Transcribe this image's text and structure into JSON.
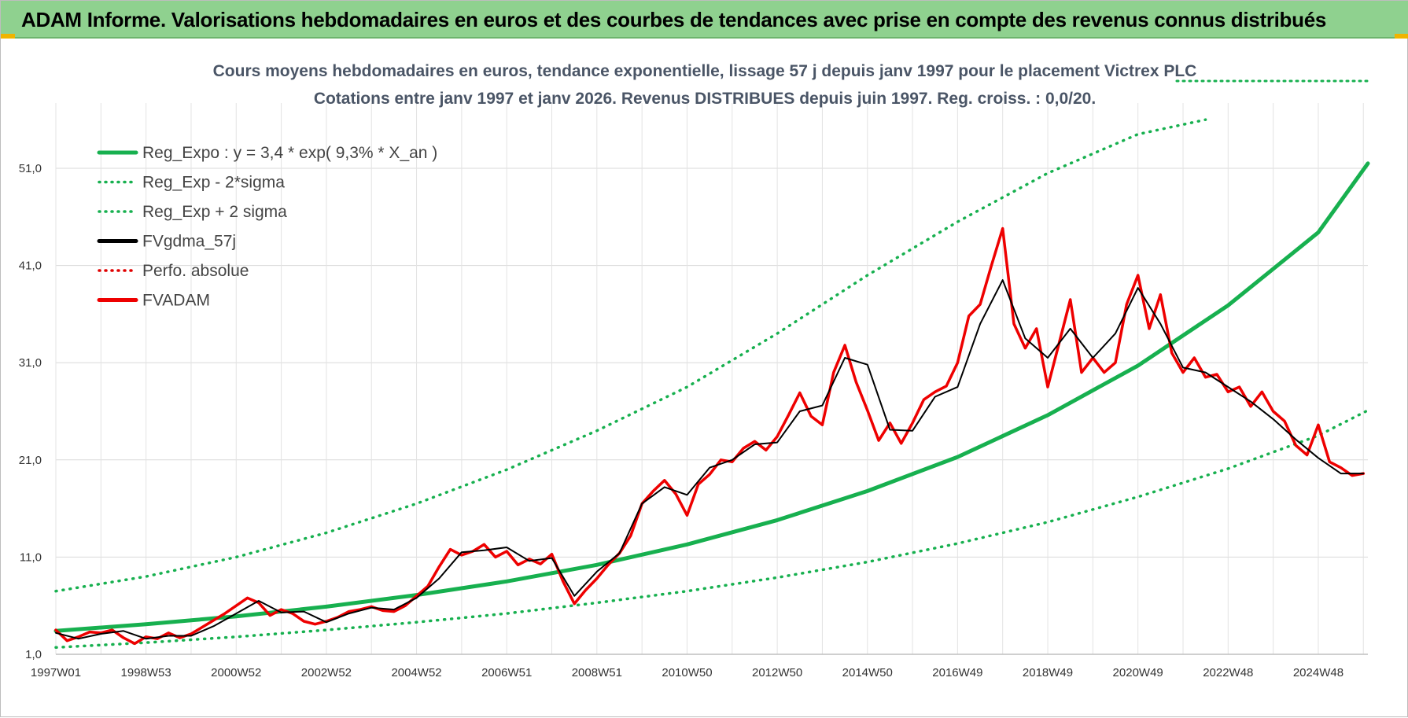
{
  "banner": {
    "title": "ADAM Informe. Valorisations hebdomadaires en euros et des courbes de tendances avec prise en compte des revenus connus distribués"
  },
  "chart_data": {
    "type": "line",
    "title_lines": [
      "Cours moyens hebdomadaires en euros, tendance exponentielle, lissage 57 j depuis janv 1997  pour le placement Victrex PLC",
      "Cotations entre janv 1997 et janv 2026. Revenus DISTRIBUES depuis juin 1997. Reg. croiss. : 0,0/20."
    ],
    "xlabel": "",
    "ylabel": "",
    "xlim": [
      1997.0,
      2026.1
    ],
    "ylim": [
      1.0,
      56.0
    ],
    "yticks": [
      {
        "value": 1.0,
        "label": "1,0"
      },
      {
        "value": 11.0,
        "label": "11,0"
      },
      {
        "value": 21.0,
        "label": "21,0"
      },
      {
        "value": 31.0,
        "label": "31,0"
      },
      {
        "value": 41.0,
        "label": "41,0"
      },
      {
        "value": 51.0,
        "label": "51,0"
      }
    ],
    "xticks": [
      {
        "value": 1997.0,
        "label": "1997W01"
      },
      {
        "value": 1999.0,
        "label": "1998W53"
      },
      {
        "value": 2001.0,
        "label": "2000W52"
      },
      {
        "value": 2003.0,
        "label": "2002W52"
      },
      {
        "value": 2005.0,
        "label": "2004W52"
      },
      {
        "value": 2007.0,
        "label": "2006W51"
      },
      {
        "value": 2009.0,
        "label": "2008W51"
      },
      {
        "value": 2011.0,
        "label": "2010W50"
      },
      {
        "value": 2013.0,
        "label": "2012W50"
      },
      {
        "value": 2015.0,
        "label": "2014W50"
      },
      {
        "value": 2017.0,
        "label": "2016W49"
      },
      {
        "value": 2019.0,
        "label": "2018W49"
      },
      {
        "value": 2021.0,
        "label": "2020W49"
      },
      {
        "value": 2023.0,
        "label": "2022W48"
      },
      {
        "value": 2025.0,
        "label": "2024W48"
      }
    ],
    "grid": true,
    "legend_position": "top-left",
    "series": [
      {
        "name": "Reg_Expo : y = 3,4 * exp( 9,3% *  X_an )",
        "color": "#17b04f",
        "style": "solid",
        "x": [
          1997,
          1999,
          2001,
          2003,
          2005,
          2007,
          2009,
          2011,
          2013,
          2015,
          2017,
          2019,
          2021,
          2023,
          2025,
          2026.1
        ],
        "values": [
          3.4,
          4.1,
          4.9,
          5.9,
          7.1,
          8.5,
          10.2,
          12.3,
          14.8,
          17.8,
          21.3,
          25.6,
          30.7,
          36.9,
          44.4,
          51.5
        ]
      },
      {
        "name": "Reg_Exp - 2*sigma",
        "color": "#17b04f",
        "style": "dotted",
        "x": [
          1997,
          1999,
          2001,
          2003,
          2005,
          2007,
          2009,
          2011,
          2013,
          2015,
          2017,
          2019,
          2021,
          2023,
          2025,
          2026.1
        ],
        "values": [
          1.7,
          2.2,
          2.8,
          3.5,
          4.3,
          5.2,
          6.3,
          7.5,
          8.9,
          10.5,
          12.4,
          14.6,
          17.2,
          20.1,
          23.5,
          26.1
        ]
      },
      {
        "name": "Reg_Exp + 2 sigma",
        "color": "#17b04f",
        "style": "dotted",
        "x": [
          1997,
          1999,
          2001,
          2003,
          2005,
          2007,
          2009,
          2011,
          2013,
          2015,
          2017,
          2019,
          2021,
          2022.5
        ],
        "values": [
          7.5,
          9.0,
          11.0,
          13.5,
          16.5,
          20.0,
          24.0,
          28.5,
          34.0,
          40.0,
          45.5,
          50.5,
          54.5,
          56.0
        ]
      },
      {
        "name": "FVgdma_57j",
        "color": "#000000",
        "style": "solid",
        "x": [
          1997.0,
          1997.5,
          1998.0,
          1998.5,
          1999.0,
          1999.5,
          2000.0,
          2000.5,
          2001.0,
          2001.5,
          2002.0,
          2002.5,
          2003.0,
          2003.5,
          2004.0,
          2004.5,
          2005.0,
          2005.5,
          2006.0,
          2006.5,
          2007.0,
          2007.5,
          2008.0,
          2008.5,
          2009.0,
          2009.5,
          2010.0,
          2010.5,
          2011.0,
          2011.5,
          2012.0,
          2012.5,
          2013.0,
          2013.5,
          2014.0,
          2014.5,
          2015.0,
          2015.5,
          2016.0,
          2016.5,
          2017.0,
          2017.5,
          2018.0,
          2018.5,
          2019.0,
          2019.5,
          2020.0,
          2020.5,
          2021.0,
          2021.5,
          2022.0,
          2022.5,
          2023.0,
          2023.5,
          2024.0,
          2024.5,
          2025.0,
          2025.5,
          2026.0
        ],
        "values": [
          3.2,
          2.6,
          3.1,
          3.4,
          2.6,
          2.9,
          2.9,
          3.9,
          5.2,
          6.5,
          5.3,
          5.4,
          4.3,
          5.2,
          5.8,
          5.6,
          6.8,
          8.8,
          11.5,
          11.7,
          12.0,
          10.6,
          10.9,
          7.0,
          9.5,
          11.4,
          16.5,
          18.2,
          17.4,
          20.2,
          21.0,
          22.6,
          22.8,
          26.0,
          26.6,
          31.5,
          30.8,
          24.1,
          24.0,
          27.5,
          28.5,
          35.0,
          39.5,
          33.5,
          31.5,
          34.5,
          31.5,
          34.0,
          38.7,
          35.0,
          30.5,
          30.0,
          28.5,
          27.0,
          25.2,
          23.1,
          21.2,
          19.6,
          19.6
        ]
      },
      {
        "name": "Perfo. absolue",
        "color": "#e00000",
        "style": "dotted",
        "x": [],
        "values": []
      },
      {
        "name": "FVADAM",
        "color": "#ee0000",
        "style": "solid",
        "x": [
          1997.0,
          1997.25,
          1997.5,
          1997.75,
          1998.0,
          1998.25,
          1998.5,
          1998.75,
          1999.0,
          1999.25,
          1999.5,
          1999.75,
          2000.0,
          2000.25,
          2000.5,
          2000.75,
          2001.0,
          2001.25,
          2001.5,
          2001.75,
          2002.0,
          2002.25,
          2002.5,
          2002.75,
          2003.0,
          2003.25,
          2003.5,
          2003.75,
          2004.0,
          2004.25,
          2004.5,
          2004.75,
          2005.0,
          2005.25,
          2005.5,
          2005.75,
          2006.0,
          2006.25,
          2006.5,
          2006.75,
          2007.0,
          2007.25,
          2007.5,
          2007.75,
          2008.0,
          2008.25,
          2008.5,
          2008.75,
          2009.0,
          2009.25,
          2009.5,
          2009.75,
          2010.0,
          2010.25,
          2010.5,
          2010.75,
          2011.0,
          2011.25,
          2011.5,
          2011.75,
          2012.0,
          2012.25,
          2012.5,
          2012.75,
          2013.0,
          2013.25,
          2013.5,
          2013.75,
          2014.0,
          2014.25,
          2014.5,
          2014.75,
          2015.0,
          2015.25,
          2015.5,
          2015.75,
          2016.0,
          2016.25,
          2016.5,
          2016.75,
          2017.0,
          2017.25,
          2017.5,
          2017.75,
          2018.0,
          2018.25,
          2018.5,
          2018.75,
          2019.0,
          2019.25,
          2019.5,
          2019.75,
          2020.0,
          2020.25,
          2020.5,
          2020.75,
          2021.0,
          2021.25,
          2021.5,
          2021.75,
          2022.0,
          2022.25,
          2022.5,
          2022.75,
          2023.0,
          2023.25,
          2023.5,
          2023.75,
          2024.0,
          2024.25,
          2024.5,
          2024.75,
          2025.0,
          2025.25,
          2025.5,
          2025.75,
          2026.0
        ],
        "values": [
          3.5,
          2.4,
          2.8,
          3.3,
          3.2,
          3.5,
          2.7,
          2.1,
          2.8,
          2.6,
          3.2,
          2.7,
          3.1,
          3.8,
          4.5,
          5.2,
          6.0,
          6.8,
          6.3,
          5.0,
          5.6,
          5.2,
          4.4,
          4.1,
          4.4,
          4.8,
          5.4,
          5.6,
          5.9,
          5.5,
          5.4,
          6.0,
          7.0,
          8.0,
          10.0,
          11.8,
          11.2,
          11.6,
          12.3,
          11.0,
          11.6,
          10.2,
          10.8,
          10.3,
          11.3,
          8.5,
          6.2,
          7.6,
          8.8,
          10.2,
          11.4,
          13.2,
          16.5,
          17.8,
          18.9,
          17.5,
          15.3,
          18.5,
          19.5,
          21.0,
          20.8,
          22.2,
          22.9,
          22.0,
          23.4,
          25.6,
          27.9,
          25.5,
          24.6,
          30.0,
          32.8,
          29.0,
          26.1,
          23.0,
          24.8,
          22.7,
          24.8,
          27.2,
          28.0,
          28.6,
          31.0,
          35.8,
          37.0,
          41.0,
          44.8,
          35.0,
          32.5,
          34.5,
          28.5,
          33.0,
          37.5,
          30.0,
          31.5,
          30.0,
          31.0,
          37.0,
          40.0,
          34.5,
          38.0,
          32.0,
          30.0,
          31.5,
          29.5,
          29.8,
          28.0,
          28.5,
          26.5,
          28.0,
          26.0,
          25.0,
          22.5,
          21.5,
          24.6,
          20.8,
          20.2,
          19.4,
          19.6
        ]
      }
    ]
  }
}
